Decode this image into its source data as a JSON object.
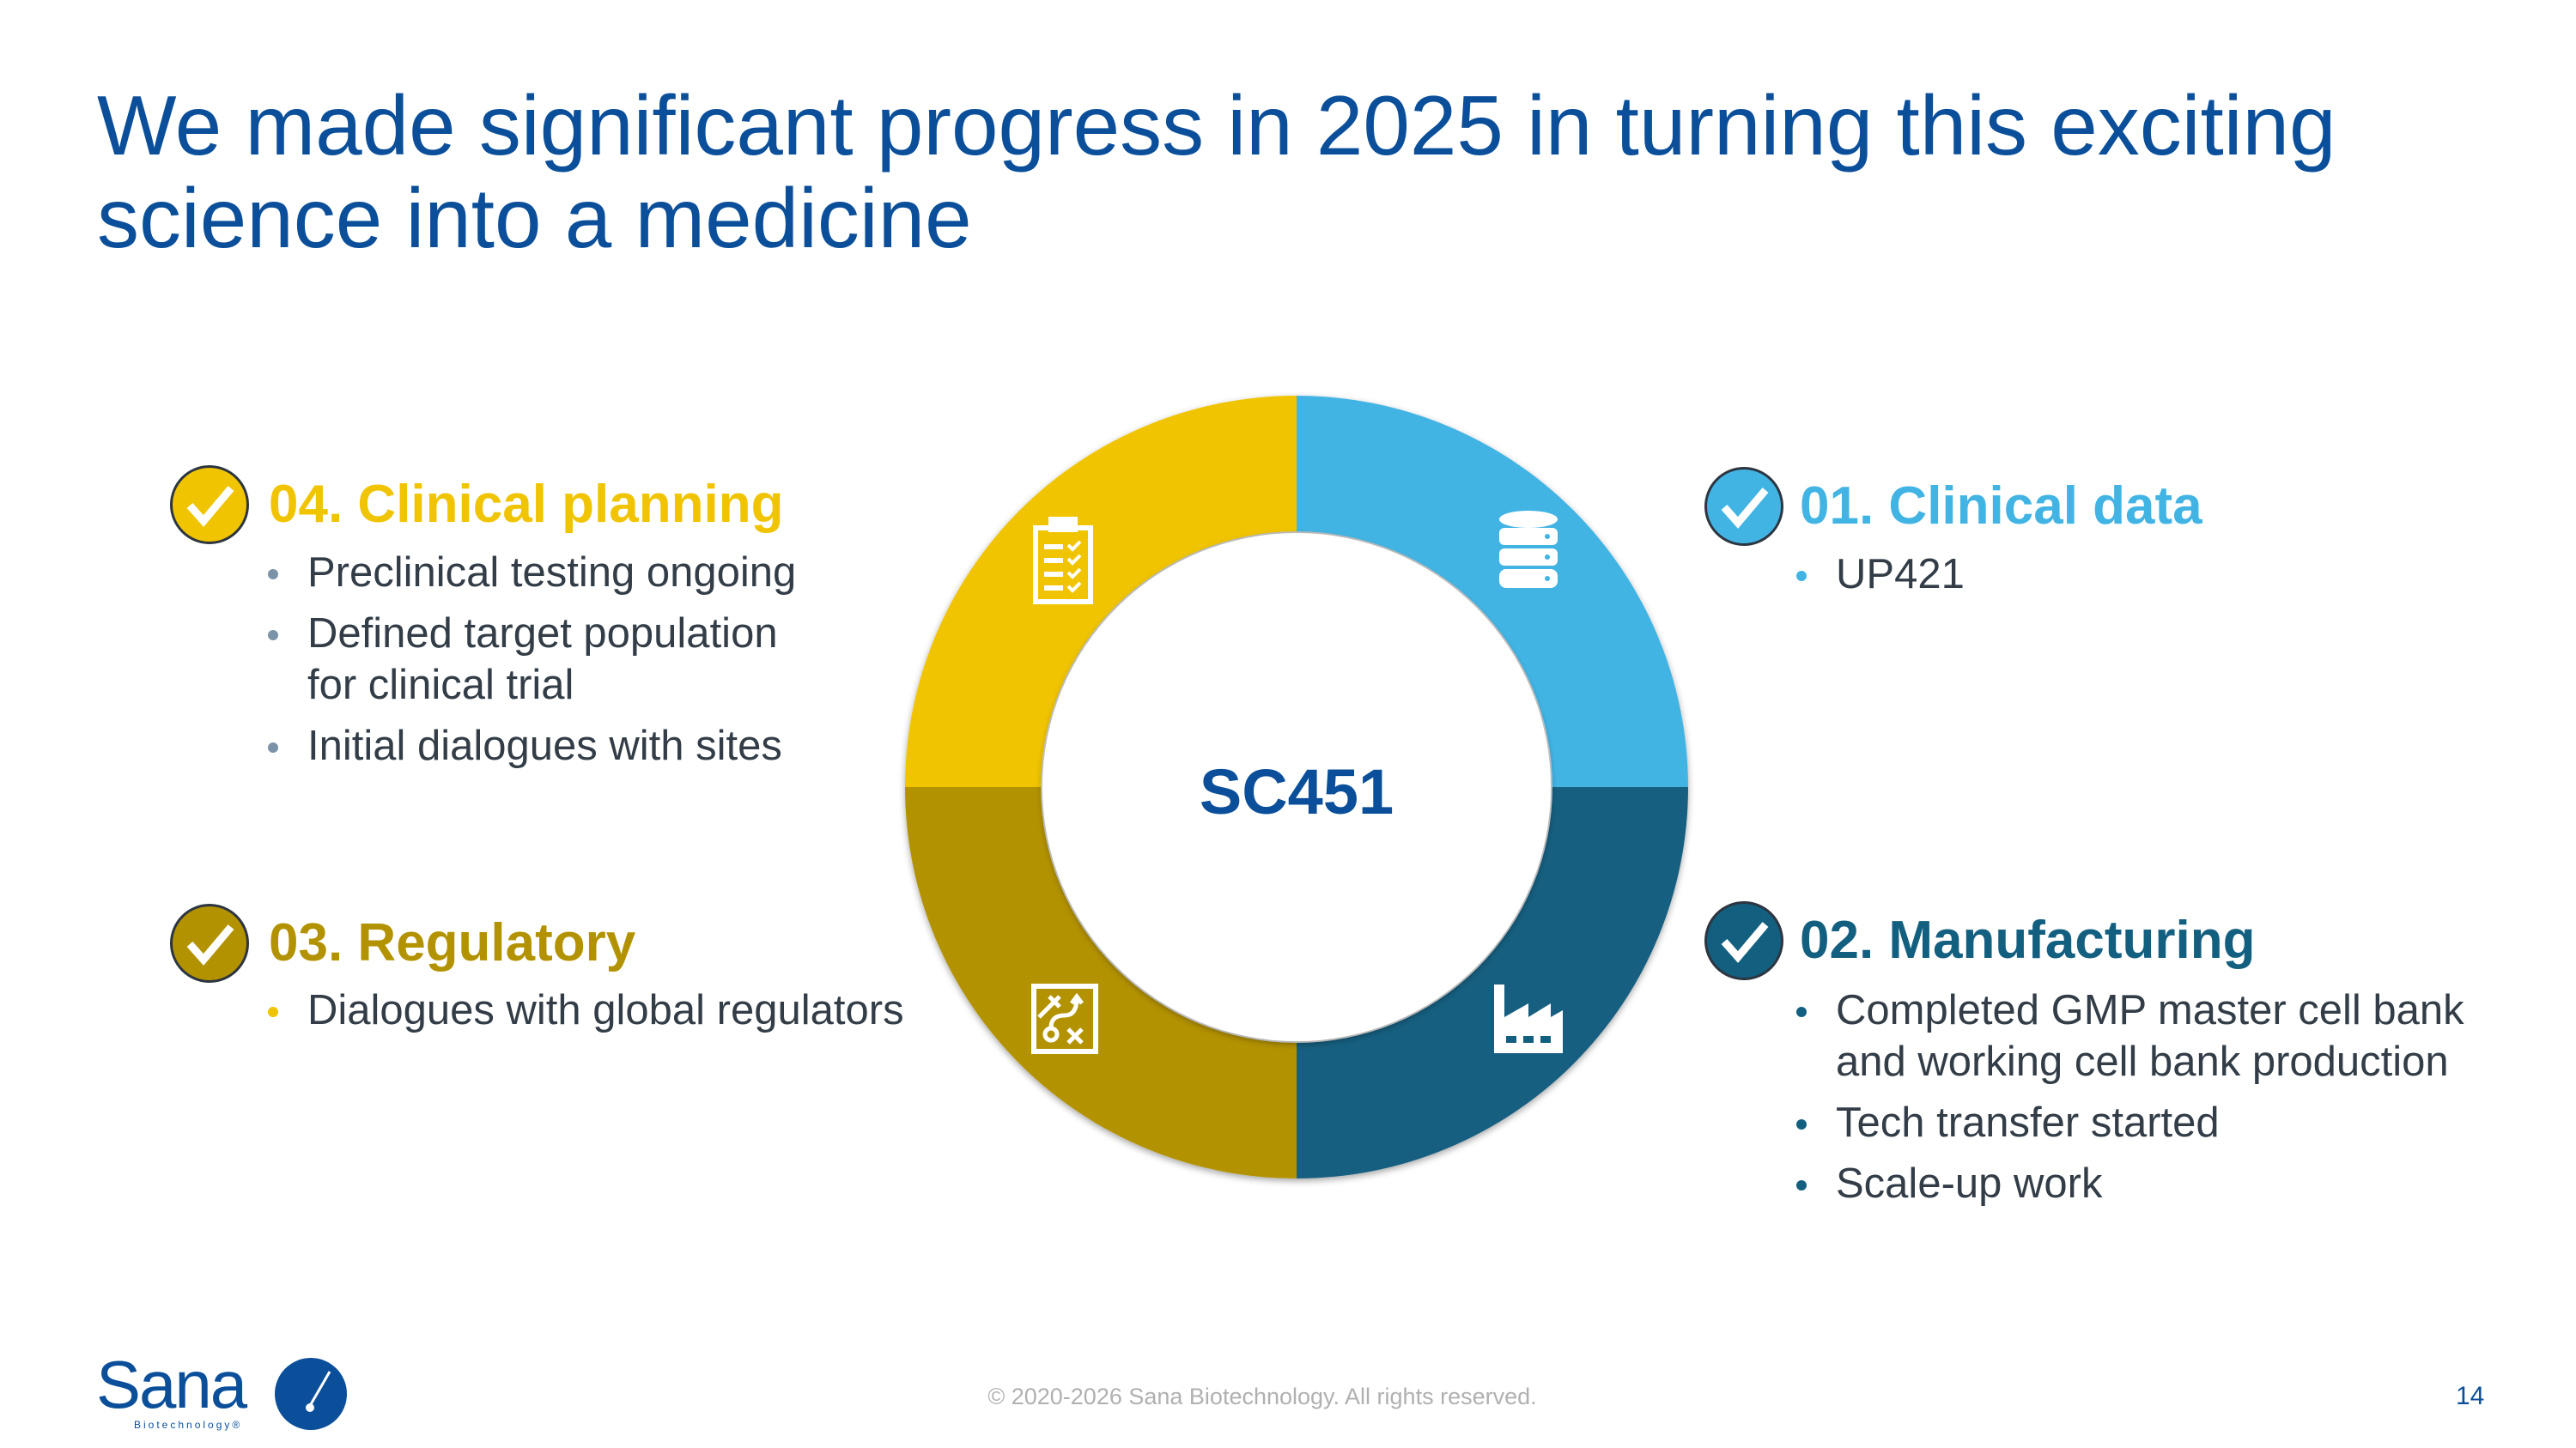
{
  "title": "We made significant progress in 2025 in turning this exciting science into a medicine",
  "center_label": "SC451",
  "colors": {
    "title_blue": "#0b4f9a",
    "clinical_data": "#42b4e4",
    "manufacturing": "#135f80",
    "regulatory": "#b39200",
    "clinical_planning": "#f0c400"
  },
  "sections": {
    "clinical_data": {
      "heading": "01. Clinical data",
      "icon": "database-icon",
      "bullets": [
        "UP421"
      ]
    },
    "manufacturing": {
      "heading": "02. Manufacturing",
      "icon": "factory-icon",
      "bullets": [
        "Completed GMP master cell bank and working cell bank production",
        "Tech transfer started",
        "Scale-up work"
      ]
    },
    "regulatory": {
      "heading": "03. Regulatory",
      "icon": "strategy-board-icon",
      "bullets": [
        "Dialogues with global regulators"
      ]
    },
    "clinical_planning": {
      "heading": "04. Clinical planning",
      "icon": "clipboard-checklist-icon",
      "bullets": [
        "Preclinical testing ongoing",
        "Defined target population for clinical trial",
        "Initial dialogues with sites"
      ]
    }
  },
  "footer": {
    "logo_text": "Sana Biotechnology",
    "copyright": "© 2020-2026 Sana Biotechnology. All rights reserved.",
    "page_number": "14"
  }
}
